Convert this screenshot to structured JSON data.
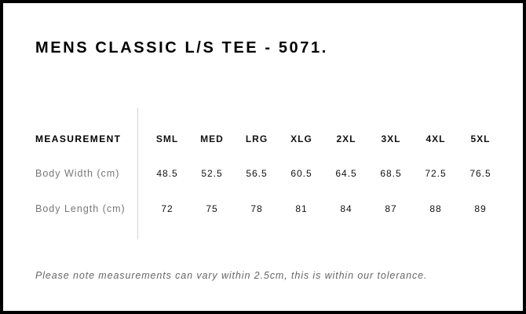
{
  "title": "MENS CLASSIC L/S TEE - 5071.",
  "table": {
    "header_label": "MEASUREMENT",
    "sizes": [
      "SML",
      "MED",
      "LRG",
      "XLG",
      "2XL",
      "3XL",
      "4XL",
      "5XL"
    ],
    "rows": [
      {
        "label": "Body Width (cm)",
        "values": [
          "48.5",
          "52.5",
          "56.5",
          "60.5",
          "64.5",
          "68.5",
          "72.5",
          "76.5"
        ]
      },
      {
        "label": "Body Length (cm)",
        "values": [
          "72",
          "75",
          "78",
          "81",
          "84",
          "87",
          "88",
          "89"
        ]
      }
    ]
  },
  "note": "Please note measurements can vary within 2.5cm, this is within our tolerance."
}
